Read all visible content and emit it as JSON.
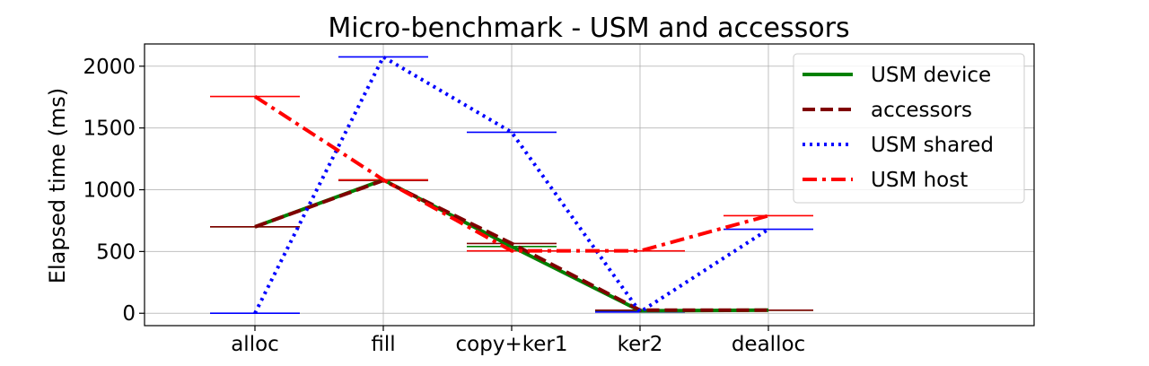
{
  "chart_data": {
    "type": "line",
    "title": "Micro-benchmark - USM and accessors",
    "xlabel": "",
    "ylabel": "Elapsed time (ms)",
    "categories": [
      "alloc",
      "fill",
      "copy+ker1",
      "ker2",
      "dealloc"
    ],
    "ylim": [
      -100,
      2180
    ],
    "yticks": [
      0,
      500,
      1000,
      1500,
      2000
    ],
    "grid": true,
    "legend_position": "top-right",
    "series": [
      {
        "name": "USM device",
        "values": [
          700,
          1080,
          540,
          20,
          25
        ],
        "color": "#008000",
        "dash": "solid"
      },
      {
        "name": "accessors",
        "values": [
          700,
          1075,
          565,
          25,
          25
        ],
        "color": "#800000",
        "dash": "dashed"
      },
      {
        "name": "USM shared",
        "values": [
          0,
          2075,
          1465,
          10,
          680
        ],
        "color": "#0000ff",
        "dash": "dotted"
      },
      {
        "name": "USM host",
        "values": [
          1755,
          1080,
          505,
          505,
          790
        ],
        "color": "#ff0000",
        "dash": "dashdot"
      }
    ]
  }
}
